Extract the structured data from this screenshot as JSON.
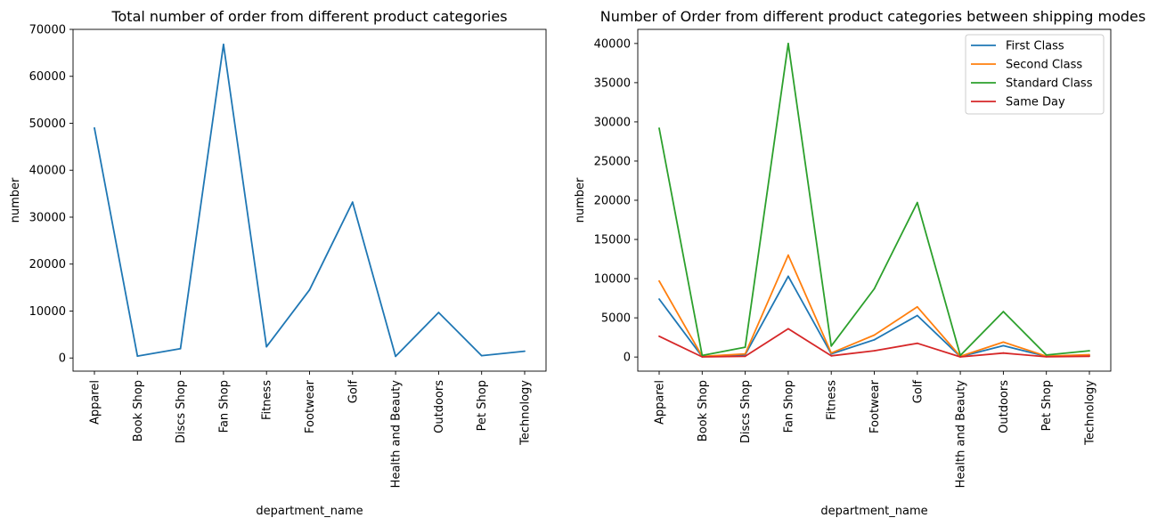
{
  "chart_data": [
    {
      "type": "line",
      "title": "Total number of order from different product categories",
      "xlabel": "department_name",
      "ylabel": "number",
      "categories": [
        "Apparel",
        "Book Shop",
        "Discs Shop",
        "Fan Shop",
        "Fitness",
        "Footwear",
        "Golf",
        "Health and Beauty",
        "Outdoors",
        "Pet Shop",
        "Technology"
      ],
      "ylim": [
        -2800,
        70000
      ],
      "yticks": [
        0,
        10000,
        20000,
        30000,
        40000,
        50000,
        60000,
        70000
      ],
      "grid": false,
      "legend": null,
      "series": [
        {
          "values": [
            49000,
            400,
            2000,
            66800,
            2400,
            14500,
            33200,
            350,
            9700,
            500,
            1450
          ],
          "color": "#1f77b4"
        }
      ]
    },
    {
      "type": "line",
      "title": "Number of Order from different product categories between shipping modes",
      "xlabel": "department_name",
      "ylabel": "number",
      "categories": [
        "Apparel",
        "Book Shop",
        "Discs Shop",
        "Fan Shop",
        "Fitness",
        "Footwear",
        "Golf",
        "Health and Beauty",
        "Outdoors",
        "Pet Shop",
        "Technology"
      ],
      "ylim": [
        -1800,
        41800
      ],
      "yticks": [
        0,
        5000,
        10000,
        15000,
        20000,
        25000,
        30000,
        35000,
        40000
      ],
      "grid": false,
      "legend": "top-right",
      "series": [
        {
          "name": "First Class",
          "values": [
            7400,
            50,
            300,
            10300,
            400,
            2200,
            5300,
            50,
            1450,
            90,
            200
          ],
          "color": "#1f77b4"
        },
        {
          "name": "Second Class",
          "values": [
            9700,
            80,
            400,
            13000,
            500,
            2800,
            6400,
            80,
            1900,
            110,
            300
          ],
          "color": "#ff7f0e"
        },
        {
          "name": "Standard Class",
          "values": [
            29200,
            200,
            1250,
            40000,
            1400,
            8700,
            19700,
            200,
            5800,
            250,
            800
          ],
          "color": "#2ca02c"
        },
        {
          "name": "Same Day",
          "values": [
            2650,
            20,
            100,
            3600,
            150,
            800,
            1750,
            20,
            500,
            30,
            100
          ],
          "color": "#d62728"
        }
      ]
    }
  ]
}
